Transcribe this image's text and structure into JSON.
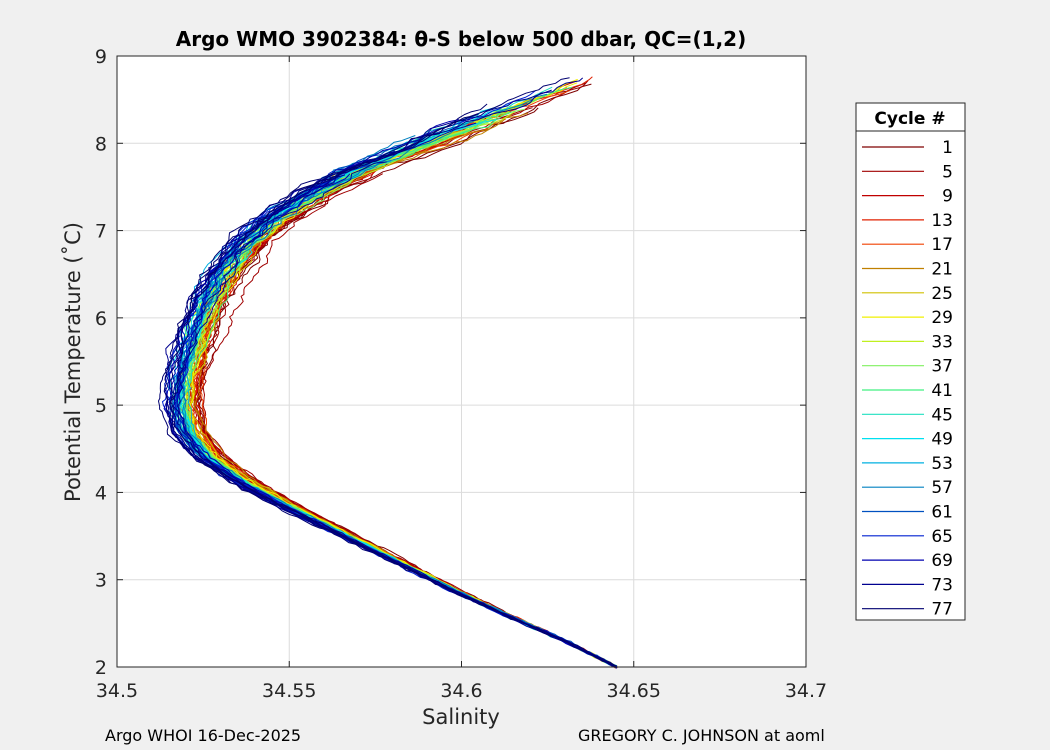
{
  "chart_data": {
    "type": "line",
    "title": "Argo WMO 3902384: θ-S below 500 dbar,  QC=(1,2)",
    "xlabel": "Salinity",
    "ylabel": "Potential Temperature (˚C)",
    "xlim": [
      34.5,
      34.7
    ],
    "ylim": [
      2,
      9
    ],
    "xticks": [
      34.5,
      34.55,
      34.6,
      34.65,
      34.7
    ],
    "xtick_labels": [
      "34.5",
      "34.55",
      "34.6",
      "34.65",
      "34.7"
    ],
    "yticks": [
      2,
      3,
      4,
      5,
      6,
      7,
      8,
      9
    ],
    "ytick_labels": [
      "2",
      "3",
      "4",
      "5",
      "6",
      "7",
      "8",
      "9"
    ],
    "grid": true,
    "legend_title": "Cycle #",
    "legend_position": "outside-right",
    "mean_profile": {
      "theta": [
        2.0,
        2.3,
        2.6,
        2.9,
        3.2,
        3.5,
        3.8,
        4.1,
        4.4,
        4.7,
        5.0,
        5.3,
        5.6,
        5.9,
        6.2,
        6.5,
        6.8,
        7.1,
        7.4,
        7.7,
        8.0,
        8.3,
        8.6,
        8.8
      ],
      "salinity": [
        34.645,
        34.63,
        34.613,
        34.597,
        34.582,
        34.567,
        34.552,
        34.538,
        34.527,
        34.521,
        34.519,
        34.52,
        34.522,
        34.524,
        34.527,
        34.531,
        34.537,
        34.545,
        34.557,
        34.571,
        34.59,
        34.608,
        34.628,
        34.64
      ]
    },
    "series": [
      {
        "name": "1",
        "color": "#7f0000"
      },
      {
        "name": "5",
        "color": "#a00000"
      },
      {
        "name": "9",
        "color": "#c00000"
      },
      {
        "name": "13",
        "color": "#e02000"
      },
      {
        "name": "17",
        "color": "#f04000"
      },
      {
        "name": "21",
        "color": "#c08000"
      },
      {
        "name": "25",
        "color": "#d0c000"
      },
      {
        "name": "29",
        "color": "#f0f000"
      },
      {
        "name": "33",
        "color": "#c0f020"
      },
      {
        "name": "37",
        "color": "#80f060"
      },
      {
        "name": "41",
        "color": "#40f080"
      },
      {
        "name": "45",
        "color": "#20e0c0"
      },
      {
        "name": "49",
        "color": "#00e0f0"
      },
      {
        "name": "53",
        "color": "#00b0e0"
      },
      {
        "name": "57",
        "color": "#0080c0"
      },
      {
        "name": "61",
        "color": "#0050c0"
      },
      {
        "name": "65",
        "color": "#0020d0"
      },
      {
        "name": "69",
        "color": "#0000b0"
      },
      {
        "name": "73",
        "color": "#000090"
      },
      {
        "name": "77",
        "color": "#000070"
      }
    ]
  },
  "footer": {
    "left": "Argo WHOI 16-Dec-2025",
    "right": "GREGORY C. JOHNSON at aoml"
  }
}
